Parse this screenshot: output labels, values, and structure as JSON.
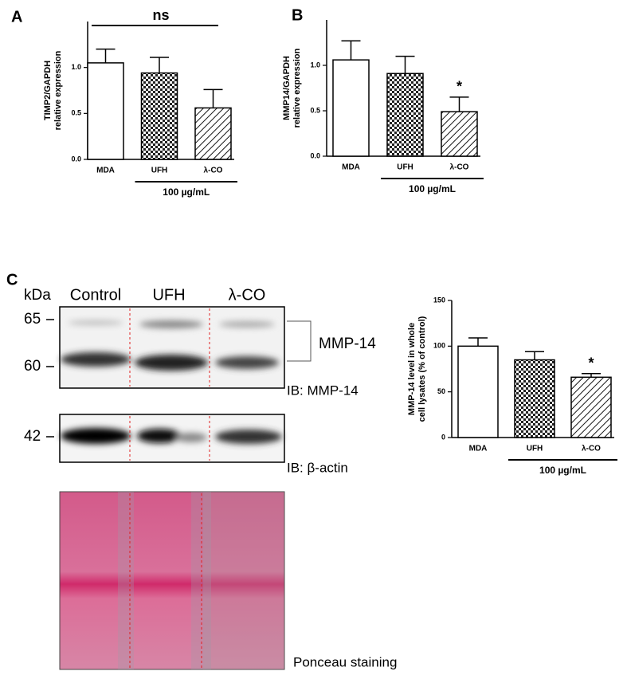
{
  "chart_data": [
    {
      "type": "bar",
      "panel": "A",
      "ylabel": [
        "TIMP2/GAPDH",
        "relative expression"
      ],
      "categories": [
        "MDA",
        "UFH",
        "λ-CO"
      ],
      "values": [
        1.05,
        0.94,
        0.56
      ],
      "errors": [
        0.15,
        0.17,
        0.2
      ],
      "patterns": [
        "none",
        "checker",
        "hatch"
      ],
      "color": "#000000",
      "ylim": [
        0,
        1.5
      ],
      "yticks": [
        {
          "value": 0,
          "label": "0.0"
        },
        {
          "value": 0.5,
          "label": "0.5"
        },
        {
          "value": 1,
          "label": "1.0"
        }
      ],
      "group_label": "100 µg/mL",
      "annotations": [
        {
          "text": "ns"
        }
      ]
    },
    {
      "type": "bar",
      "panel": "B",
      "ylabel": [
        "MMP14/GAPDH",
        "relative expression"
      ],
      "categories": [
        "MDA",
        "UFH",
        "λ-CO"
      ],
      "values": [
        1.06,
        0.91,
        0.49
      ],
      "errors": [
        0.21,
        0.19,
        0.16
      ],
      "patterns": [
        "none",
        "checker",
        "hatch"
      ],
      "color": "#000000",
      "ylim": [
        0,
        1.5
      ],
      "yticks": [
        {
          "value": 0,
          "label": "0.0"
        },
        {
          "value": 0.5,
          "label": "0.5"
        },
        {
          "value": 1,
          "label": "1.0"
        }
      ],
      "group_label": "100 µg/mL",
      "annotations": [
        {
          "text": "*",
          "category": "λ-CO"
        }
      ]
    },
    {
      "type": "bar",
      "ylabel": [
        "MMP-14 level in whole",
        "cell lysates (% of control)"
      ],
      "categories": [
        "MDA",
        "UFH",
        "λ-CO"
      ],
      "values": [
        100,
        85,
        66
      ],
      "errors": [
        9,
        9,
        4
      ],
      "patterns": [
        "none",
        "checker",
        "hatch"
      ],
      "color": "#000000",
      "ylim": [
        0,
        150
      ],
      "yticks": [
        0,
        50,
        100,
        150
      ],
      "group_label": "100 µg/mL",
      "annotations": [
        {
          "text": "*",
          "category": "λ-CO"
        }
      ]
    }
  ],
  "blot": {
    "panel": "C",
    "unit": "kDa",
    "lanes": [
      "Control",
      "UFH",
      "λ-CO"
    ],
    "markers": [
      "65",
      "60",
      "42"
    ],
    "band": "MMP-14",
    "ib": [
      "IB: MMP-14",
      "IB: β-actin"
    ],
    "stain": "Ponceau staining"
  }
}
